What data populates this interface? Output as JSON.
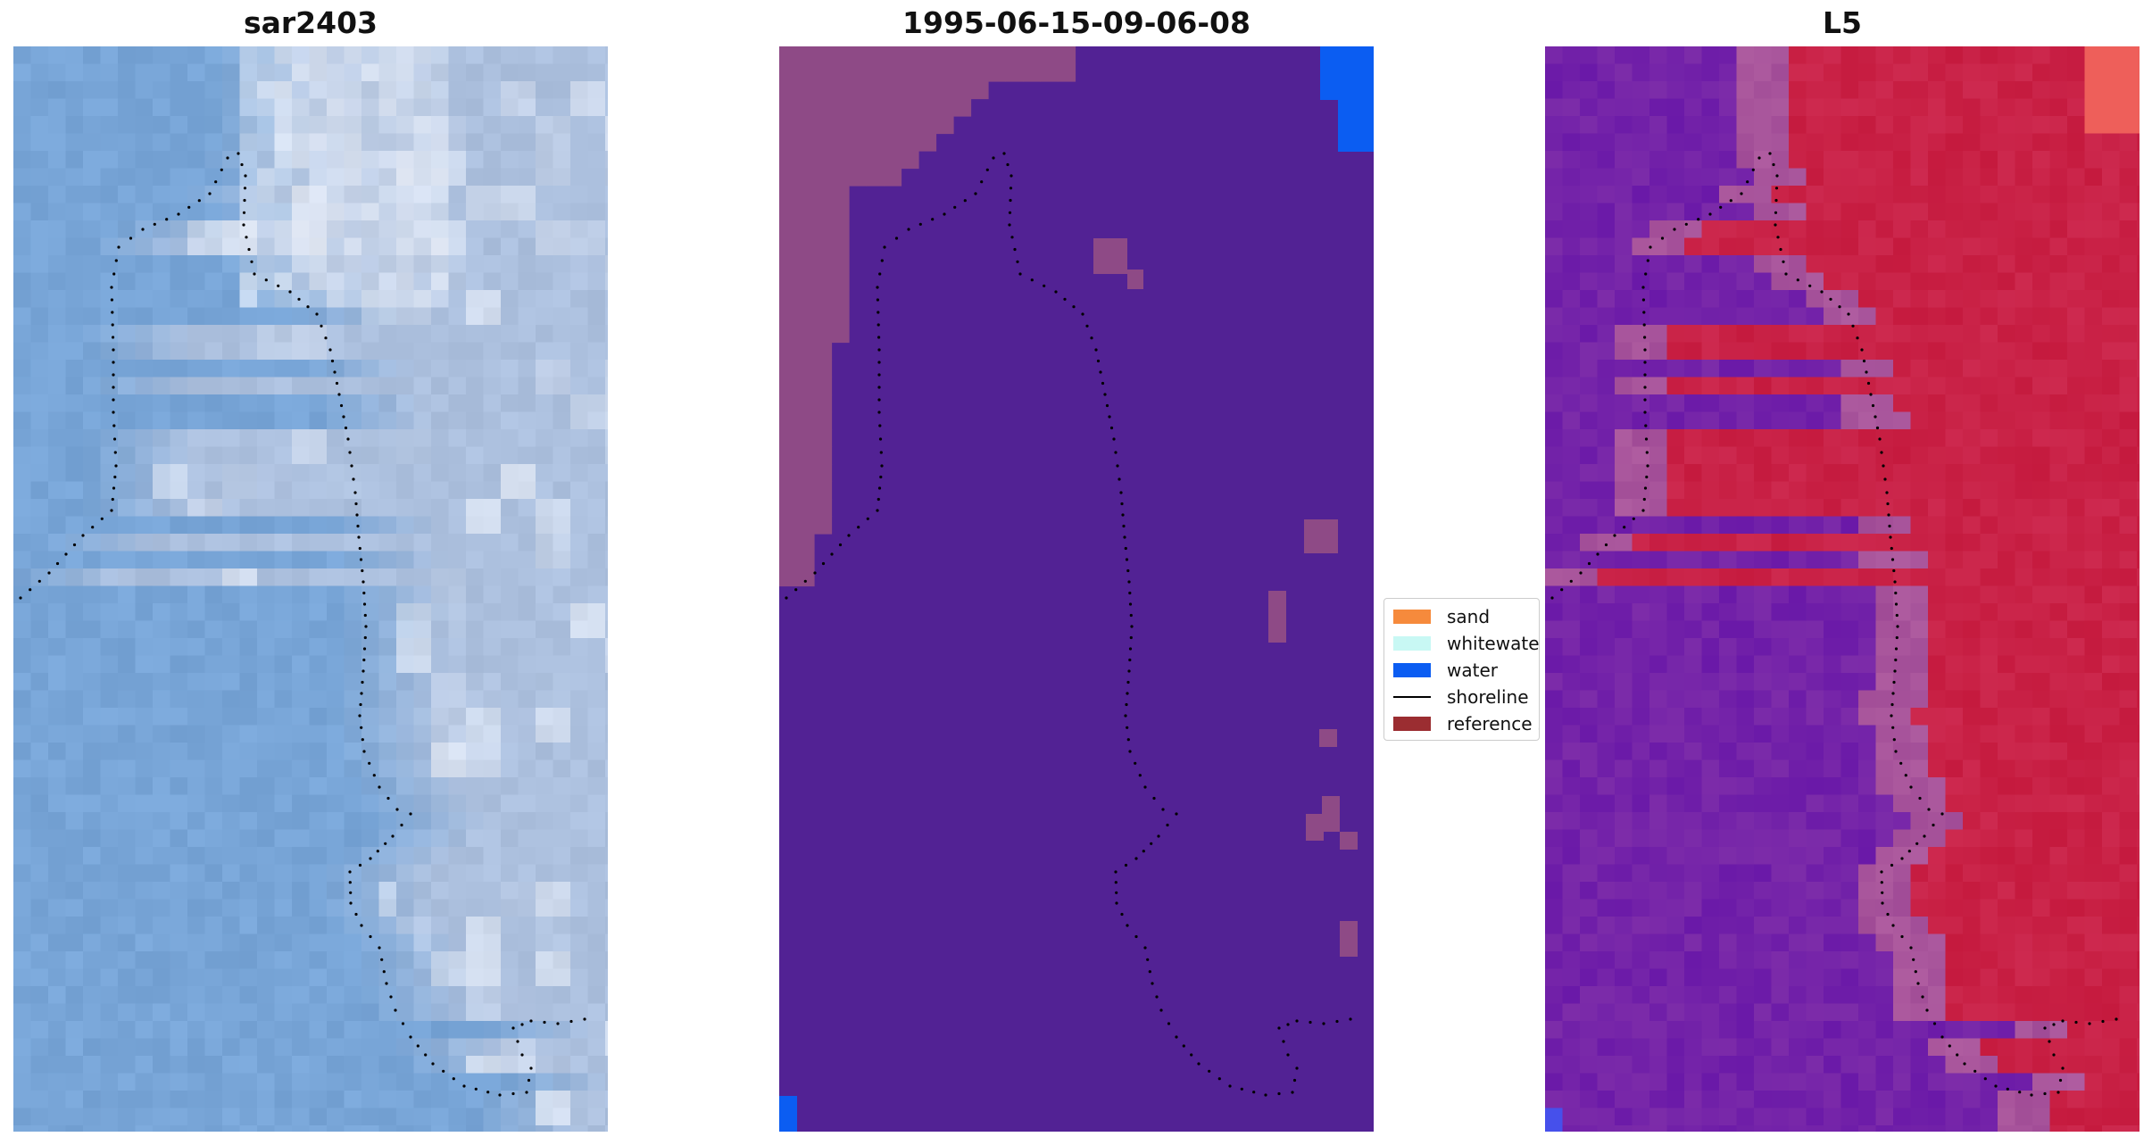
{
  "panels": [
    {
      "title": "sar2403"
    },
    {
      "title": "1995-06-15-09-06-08"
    },
    {
      "title": "L5"
    }
  ],
  "legend": {
    "items": [
      {
        "label": "sand",
        "kind": "patch",
        "color": "#f68a3c"
      },
      {
        "label": "whitewater",
        "kind": "patch",
        "color": "#c8f8f4"
      },
      {
        "label": "water",
        "kind": "patch",
        "color": "#0b5df2"
      },
      {
        "label": "shoreline",
        "kind": "line",
        "color": "#000000"
      },
      {
        "label": "reference s",
        "kind": "patch",
        "color": "#9b2d31"
      }
    ]
  },
  "colors": {
    "classified_background": "#522294",
    "classified_land": "#8e4a86",
    "classified_water": "#0b5df2",
    "index_positive": "#c51a3e",
    "index_negative": "#6a19a8",
    "shoreline_points": "#000000"
  }
}
